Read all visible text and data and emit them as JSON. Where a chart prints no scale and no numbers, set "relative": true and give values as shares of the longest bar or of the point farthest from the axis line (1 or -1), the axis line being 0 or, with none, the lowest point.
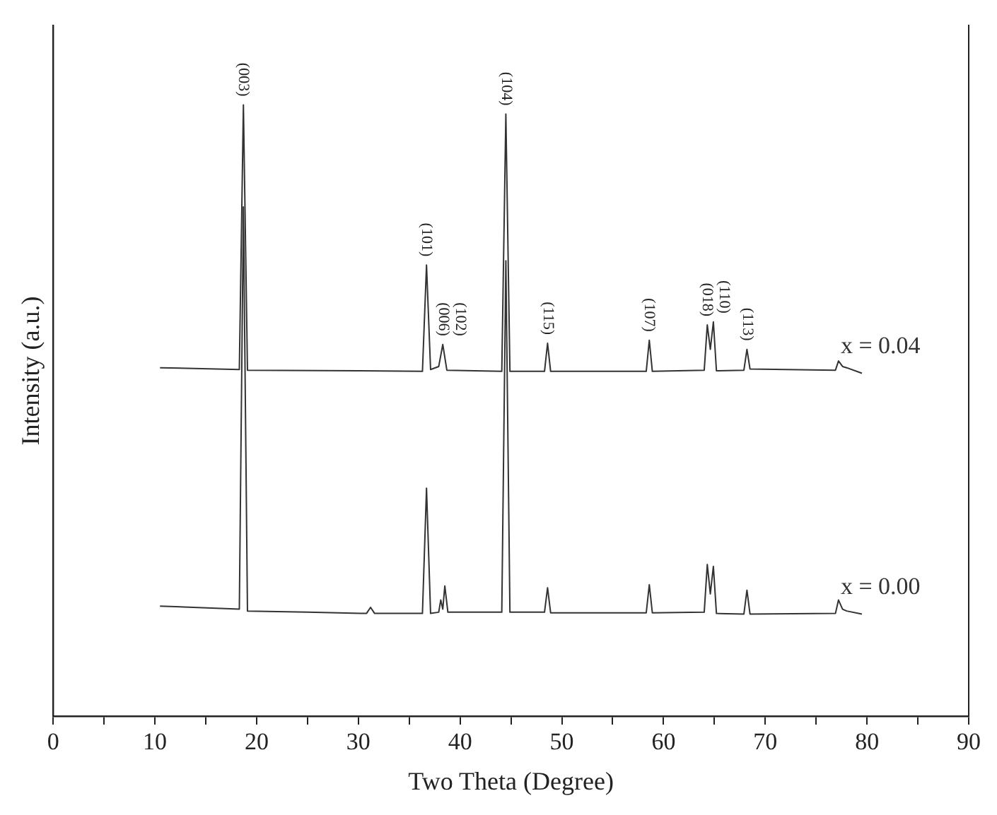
{
  "chart_data": {
    "type": "line",
    "relative": true,
    "xlabel": "Two Theta (Degree)",
    "ylabel": "Intensity (a.u.)",
    "xlim": [
      0,
      90
    ],
    "xticks": [
      0,
      {
        "value": 5,
        "label": null
      },
      10,
      {
        "value": 15,
        "label": null
      },
      20,
      {
        "value": 25,
        "label": null
      },
      30,
      {
        "value": 35,
        "label": null
      },
      40,
      {
        "value": 45,
        "label": null
      },
      50,
      {
        "value": 55,
        "label": null
      },
      60,
      {
        "value": 65,
        "label": null
      },
      70,
      {
        "value": 75,
        "label": null
      },
      80,
      {
        "value": 85,
        "label": null
      },
      90
    ],
    "tick_labels": "x",
    "grid": false,
    "legend": false,
    "marker": "none",
    "line_style": "solid",
    "series": [
      {
        "name": "x = 0.04",
        "color": "#333333",
        "x": [
          10.5,
          18.3,
          18.7,
          19.1,
          30,
          36.3,
          36.7,
          37.1,
          37.9,
          38.3,
          38.7,
          44.1,
          44.5,
          44.9,
          48.3,
          48.6,
          48.9,
          58.3,
          58.6,
          58.9,
          64.0,
          64.3,
          64.6,
          64.9,
          65.2,
          67.9,
          68.2,
          68.5,
          76.9,
          77.2,
          77.6,
          78,
          79.5
        ],
        "values": [
          0.57,
          0.567,
          1,
          0.566,
          0.565,
          0.564,
          0.738,
          0.567,
          0.572,
          0.608,
          0.566,
          0.564,
          0.985,
          0.564,
          0.564,
          0.61,
          0.564,
          0.564,
          0.615,
          0.564,
          0.566,
          0.64,
          0.6,
          0.645,
          0.565,
          0.566,
          0.6,
          0.568,
          0.566,
          0.581,
          0.572,
          0.57,
          0.561
        ]
      },
      {
        "name": "x = 0.00",
        "color": "#333333",
        "x": [
          10.5,
          18.3,
          18.7,
          19.1,
          25,
          30.8,
          31.2,
          31.6,
          36.3,
          36.7,
          37.1,
          37.9,
          38.1,
          38.3,
          38.5,
          38.8,
          44.1,
          44.5,
          44.9,
          48.3,
          48.6,
          48.9,
          58.3,
          58.6,
          58.9,
          64.0,
          64.3,
          64.6,
          64.9,
          65.2,
          67.9,
          68.2,
          68.5,
          76.9,
          77.2,
          77.6,
          78,
          79.5
        ],
        "values": [
          0.18,
          0.175,
          0.833,
          0.172,
          0.17,
          0.168,
          0.178,
          0.168,
          0.168,
          0.373,
          0.168,
          0.17,
          0.19,
          0.175,
          0.213,
          0.17,
          0.17,
          0.745,
          0.17,
          0.17,
          0.21,
          0.169,
          0.169,
          0.215,
          0.169,
          0.17,
          0.248,
          0.2,
          0.245,
          0.168,
          0.167,
          0.206,
          0.167,
          0.168,
          0.19,
          0.175,
          0.172,
          0.167
        ]
      }
    ],
    "annotations": [
      {
        "text": "(003)",
        "x": 18.7,
        "y": 1
      },
      {
        "text": "(101)",
        "x": 36.7,
        "y": 0.738
      },
      {
        "text": "(006)",
        "x": 38.1,
        "y": 0.608
      },
      {
        "text": "(102)",
        "x": 38.3,
        "y": 0.608
      },
      {
        "text": "(104)",
        "x": 44.5,
        "y": 0.985
      },
      {
        "text": "(115)",
        "x": 48.6,
        "y": 0.61
      },
      {
        "text": "(107)",
        "x": 58.6,
        "y": 0.615
      },
      {
        "text": "(018)",
        "x": 64.3,
        "y": 0.64
      },
      {
        "text": "(110)",
        "x": 64.9,
        "y": 0.645
      },
      {
        "text": "(113)",
        "x": 68.2,
        "y": 0.6
      }
    ]
  }
}
